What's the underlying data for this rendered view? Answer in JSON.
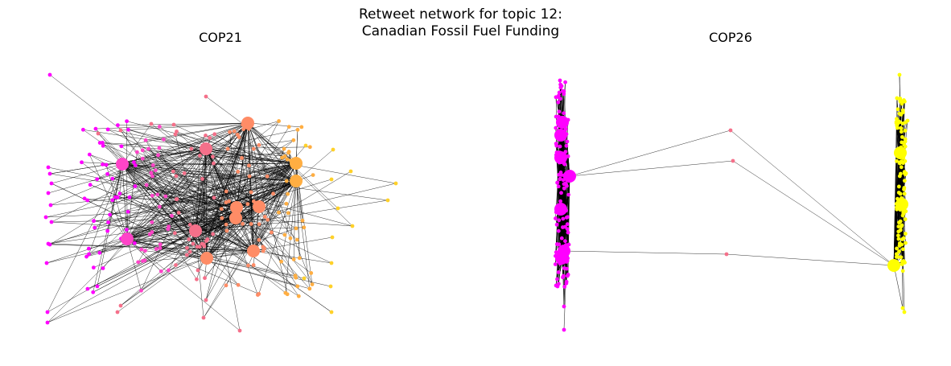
{
  "figure": {
    "title_line1": "Retweet network for topic 12:",
    "title_line2": "Canadian Fossil Fuel Funding"
  },
  "panels": [
    {
      "title": "COP21"
    },
    {
      "title": "COP26"
    }
  ],
  "colors": {
    "magenta": "#ff00ff",
    "pink": "#ff44c8",
    "rose": "#f5708a",
    "salmon": "#ff8c66",
    "orange": "#ffae42",
    "gold": "#ffd12a",
    "yellow": "#ffff00",
    "edge": "#000000"
  }
}
